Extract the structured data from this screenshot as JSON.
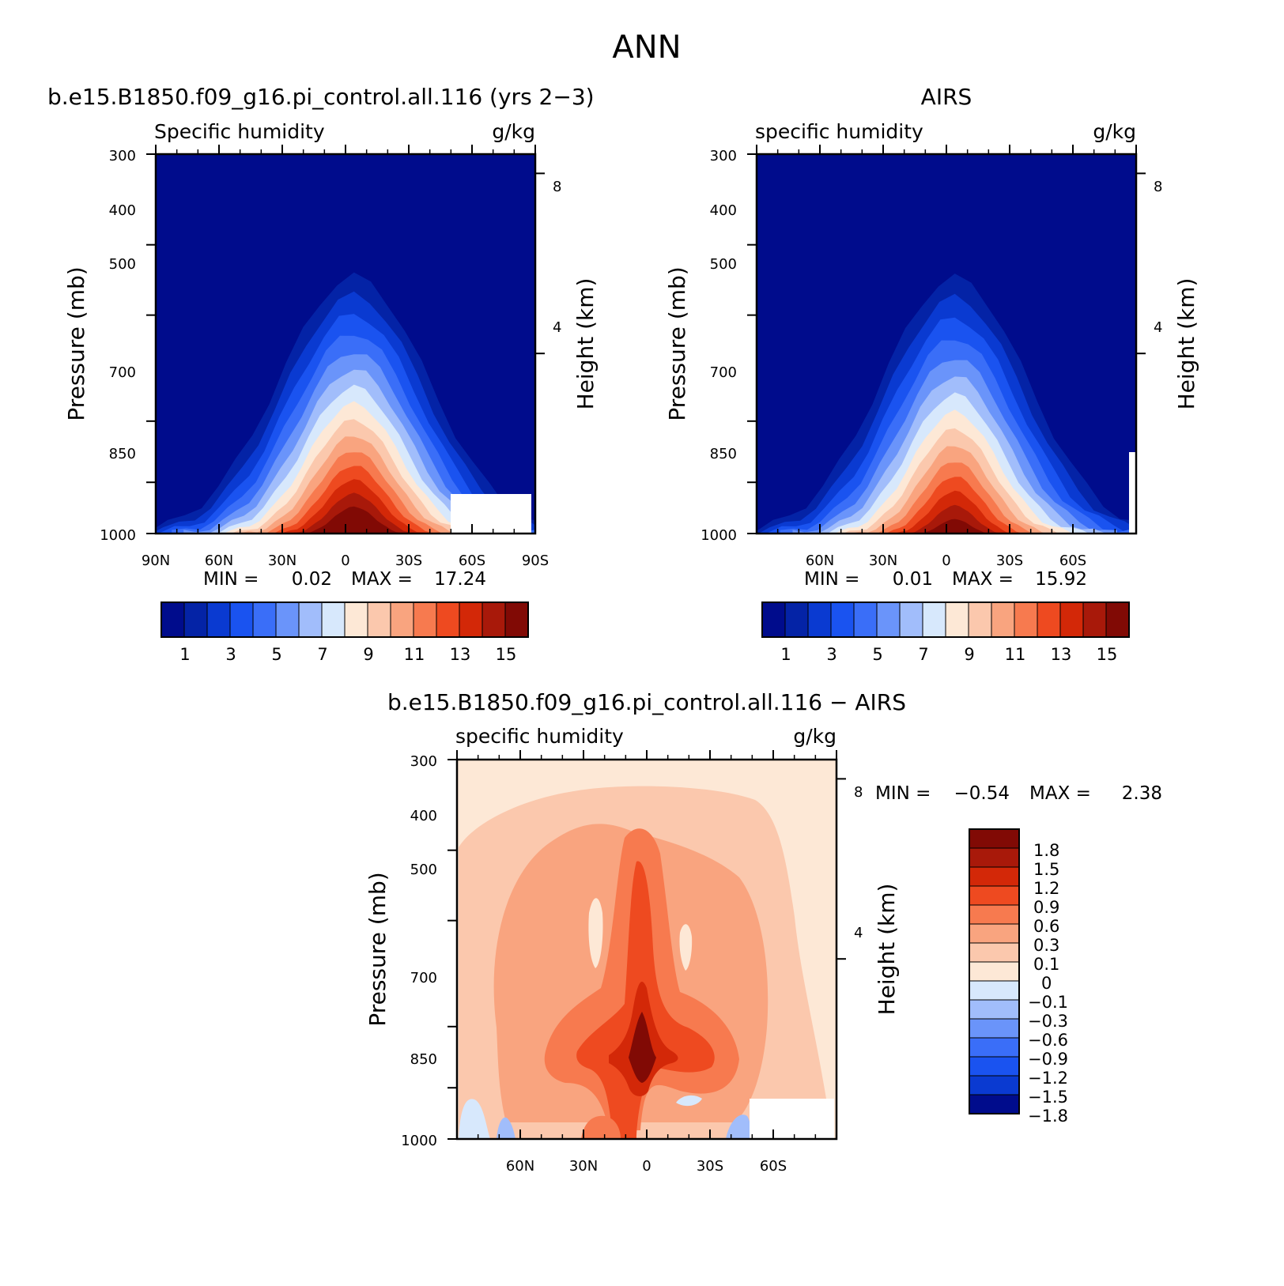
{
  "figure": {
    "title": "ANN"
  },
  "colors": {
    "ramp": [
      "#000c8c",
      "#0423a6",
      "#0a3ad1",
      "#1a53f0",
      "#3a6ef8",
      "#6a94fa",
      "#a1bdfb",
      "#d7e8fc",
      "#fde8d6",
      "#fbc8ad",
      "#f9a47f",
      "#f77a4f",
      "#ee4a20",
      "#d32808",
      "#a8190a",
      "#810a05"
    ],
    "diff_ramp": [
      "#000c8c",
      "#0a3ad1",
      "#1a53f0",
      "#3a6ef8",
      "#6a94fa",
      "#a1bdfb",
      "#d7e8fc",
      "#fde8d6",
      "#fbc8ad",
      "#f9a47f",
      "#f77a4f",
      "#ee4a20",
      "#d32808",
      "#a8190a",
      "#810a05"
    ]
  },
  "chart_data": [
    {
      "type": "contour",
      "case_title": "b.e15.B1850.f09_g16.pi_control.all.116 (yrs 2−3)",
      "variable": "Specific humidity",
      "units": "g/kg",
      "ylabel": "Pressure (mb)",
      "y2label": "Height (km)",
      "yticks": [
        "300",
        "400",
        "500",
        "700",
        "850",
        "1000"
      ],
      "y2ticks": [
        "8",
        "4"
      ],
      "xticks": [
        "90N",
        "60N",
        "30N",
        "0",
        "30S",
        "60S",
        "90S"
      ],
      "min_label": "MIN =",
      "min": "0.02",
      "max_label": "MAX =",
      "max": "17.24",
      "cbar_labels": [
        "1",
        "3",
        "5",
        "7",
        "9",
        "11",
        "13",
        "15"
      ],
      "peak_level": 16,
      "peak_lat": 4,
      "peak_width": 20
    },
    {
      "type": "contour",
      "case_title": "AIRS",
      "variable": "specific humidity",
      "units": "g/kg",
      "ylabel": "Pressure (mb)",
      "y2label": "Height (km)",
      "yticks": [
        "300",
        "400",
        "500",
        "700",
        "850",
        "1000"
      ],
      "y2ticks": [
        "8",
        "4"
      ],
      "xticks": [
        "60N",
        "30N",
        "0",
        "30S",
        "60S"
      ],
      "min_label": "MIN =",
      "min": "0.01",
      "max_label": "MAX =",
      "max": "15.92",
      "cbar_labels": [
        "1",
        "3",
        "5",
        "7",
        "9",
        "11",
        "13",
        "15"
      ],
      "peak_level": 15,
      "peak_lat": 4,
      "peak_width": 18
    },
    {
      "type": "contour",
      "case_title": "b.e15.B1850.f09_g16.pi_control.all.116 − AIRS",
      "variable": "specific humidity",
      "units": "g/kg",
      "ylabel": "Pressure (mb)",
      "y2label": "Height (km)",
      "yticks": [
        "300",
        "400",
        "500",
        "700",
        "850",
        "1000"
      ],
      "y2ticks": [
        "8",
        "4"
      ],
      "xticks": [
        "60N",
        "30N",
        "0",
        "30S",
        "60S"
      ],
      "min_label": "MIN =",
      "min": "−0.54",
      "max_label": "MAX =",
      "max": "2.38",
      "cbar_labels": [
        "1.8",
        "1.5",
        "1.2",
        "0.9",
        "0.6",
        "0.3",
        "0.1",
        "0",
        "−0.1",
        "−0.3",
        "−0.6",
        "−0.9",
        "−1.2",
        "−1.5",
        "−1.8"
      ]
    }
  ]
}
